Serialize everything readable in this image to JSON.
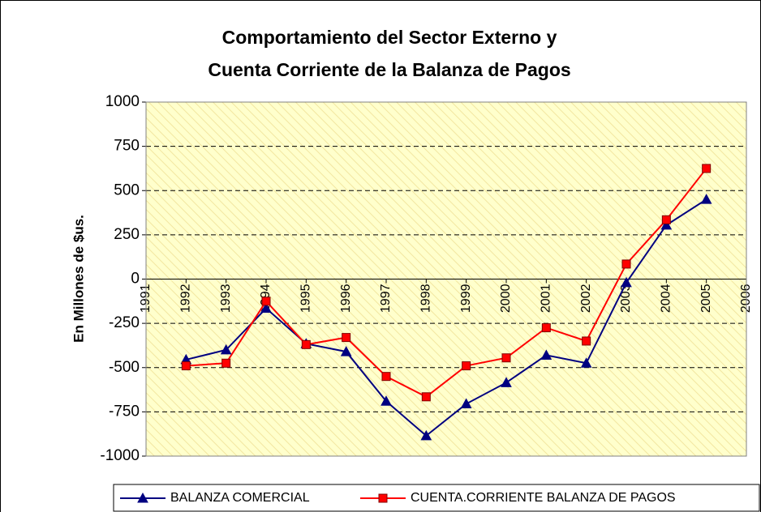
{
  "chart_data": {
    "type": "line",
    "title": [
      "Comportamiento del Sector Externo y",
      "Cuenta Corriente de la Balanza de Pagos"
    ],
    "y_label": "En Millones de $us.",
    "x": [
      1992,
      1993,
      1994,
      1995,
      1996,
      1997,
      1998,
      1999,
      2000,
      2001,
      2002,
      2003,
      2004,
      2005
    ],
    "xlim": [
      1991,
      2006
    ],
    "xticks": [
      1991,
      1992,
      1993,
      1994,
      1995,
      1996,
      1997,
      1998,
      1999,
      2000,
      2001,
      2002,
      2003,
      2004,
      2005,
      2006
    ],
    "ylim": [
      -1000,
      1000
    ],
    "yticks": [
      1000,
      750,
      500,
      250,
      0,
      -250,
      -500,
      -750,
      -1000
    ],
    "grid": true,
    "legend": "bottom",
    "series": [
      {
        "name": "BALANZA COMERCIAL",
        "color": "#000080",
        "marker": "triangle",
        "values": [
          -455,
          -400,
          -165,
          -365,
          -410,
          -690,
          -885,
          -705,
          -585,
          -430,
          -475,
          -20,
          305,
          450
        ]
      },
      {
        "name": "CUENTA.CORRIENTE BALANZA DE PAGOS",
        "color": "#ff0000",
        "marker": "square",
        "values": [
          -490,
          -475,
          -125,
          -370,
          -330,
          -550,
          -665,
          -490,
          -445,
          -275,
          -350,
          85,
          335,
          625
        ]
      }
    ]
  }
}
